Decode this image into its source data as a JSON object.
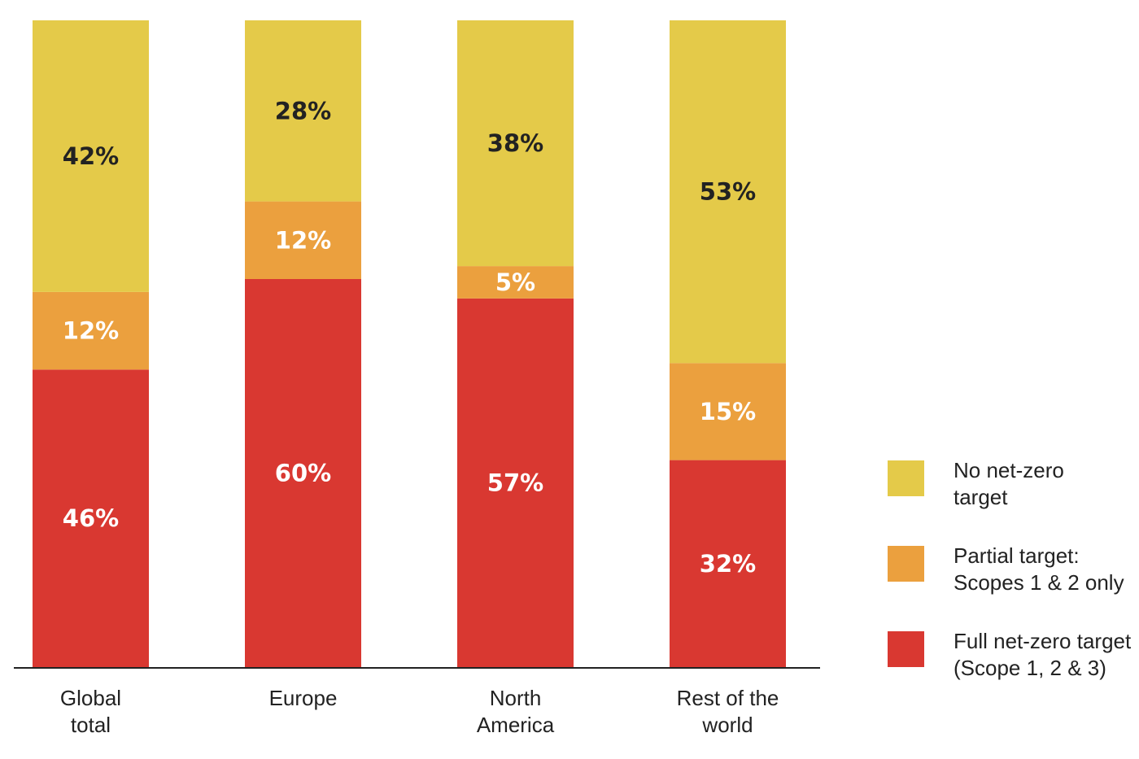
{
  "chart_data": {
    "type": "bar",
    "stacked": true,
    "categories": [
      [
        "Global",
        "total"
      ],
      [
        "Europe"
      ],
      [
        "North",
        "America"
      ],
      [
        "Rest of the",
        "world"
      ]
    ],
    "series": [
      {
        "name": "Full net-zero target (Scope 1, 2 & 3)",
        "legend_lines": [
          "Full net-zero target",
          "(Scope 1, 2 & 3)"
        ],
        "color": "#d93831",
        "label_color": "#ffffff",
        "values": [
          46,
          60,
          57,
          32
        ]
      },
      {
        "name": "Partial target: Scopes 1 & 2 only",
        "legend_lines": [
          "Partial target:",
          "Scopes 1 & 2 only"
        ],
        "color": "#eba03e",
        "label_color": "#ffffff",
        "values": [
          12,
          12,
          5,
          15
        ]
      },
      {
        "name": "No net-zero target",
        "legend_lines": [
          "No net-zero",
          "target"
        ],
        "color": "#e4ca49",
        "label_color": "#222222",
        "values": [
          42,
          28,
          38,
          53
        ]
      }
    ],
    "value_suffix": "%",
    "ylim": [
      0,
      100
    ],
    "grid": false,
    "legend_position": "right",
    "legend_order": [
      "No net-zero target",
      "Partial target: Scopes 1 & 2 only",
      "Full net-zero target (Scope 1, 2 & 3)"
    ],
    "title": "",
    "xlabel": "",
    "ylabel": ""
  }
}
